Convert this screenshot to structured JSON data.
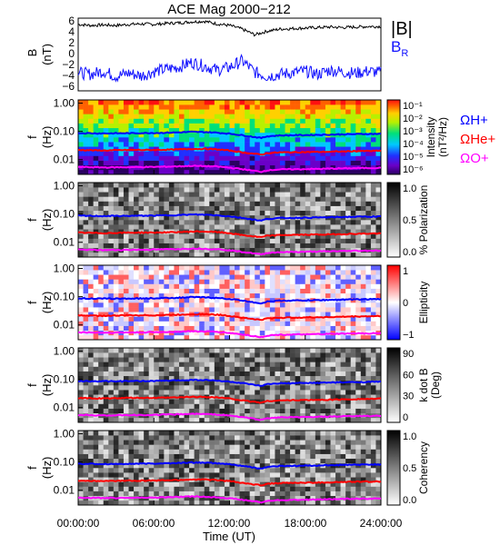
{
  "title": "ACE Mag 2000−212",
  "xlabel": "Time (UT)",
  "x_ticks": [
    "00:00:00",
    "06:00:00",
    "12:00:00",
    "18:00:00",
    "24:00:00"
  ],
  "colors": {
    "B_total": "#000000",
    "B_R": "#1010ff",
    "H": "#0000ff",
    "He": "#ff0000",
    "O": "#ff00ff"
  },
  "chart_data": [
    {
      "type": "line",
      "panel": "field",
      "ylabel": "B",
      "yunit": "(nT)",
      "ylim": [
        -7,
        7
      ],
      "y_ticks": [
        "6",
        "4",
        "2",
        "0",
        "−2",
        "−4",
        "−6"
      ],
      "x_range_hours": [
        0,
        24
      ],
      "legend": [
        "|B|",
        "B"
      ],
      "legend_sub": "R",
      "series": [
        {
          "name": "|B|",
          "x": [
            0,
            1,
            2,
            3,
            4,
            5,
            6,
            7,
            8,
            9,
            10,
            11,
            12,
            13,
            14,
            15,
            16,
            17,
            18,
            19,
            20,
            21,
            22,
            23,
            24
          ],
          "y": [
            5.8,
            5.6,
            5.7,
            5.6,
            5.8,
            5.9,
            5.8,
            6.0,
            6.1,
            6.3,
            6.4,
            5.9,
            5.6,
            4.9,
            3.8,
            4.5,
            4.9,
            5.0,
            5.1,
            5.2,
            5.3,
            5.2,
            5.3,
            5.4,
            5.4
          ]
        },
        {
          "name": "B_R",
          "x": [
            0,
            1,
            2,
            3,
            4,
            5,
            6,
            7,
            8,
            9,
            10,
            11,
            12,
            13,
            14,
            15,
            16,
            17,
            18,
            19,
            20,
            21,
            22,
            23,
            24
          ],
          "y": [
            -3.5,
            -3.8,
            -3.2,
            -4.2,
            -3.6,
            -4.1,
            -3.3,
            -2.8,
            -2.4,
            -1.5,
            -2.2,
            -3.0,
            -2.5,
            -1.2,
            -3.4,
            -4.2,
            -3.8,
            -3.5,
            -3.2,
            -3.8,
            -3.0,
            -3.4,
            -3.6,
            -3.2,
            -3.5
          ]
        }
      ]
    },
    {
      "type": "heatmap",
      "panel": "intensity",
      "ylabel": "f",
      "yunit": "(Hz)",
      "y_ticks": [
        "1.00",
        "0.10",
        "0.01"
      ],
      "colorbar_label": "Intensity",
      "colorbar_unit": "(nT²/Hz)",
      "colorbar_ticks": [
        "10⁻¹",
        "10⁻²",
        "10⁻³",
        "10⁻⁴",
        "10⁻⁵",
        "10⁻⁶"
      ],
      "gyro_labels": [
        "ΩH+",
        "ΩHe+",
        "ΩO+"
      ]
    },
    {
      "type": "heatmap",
      "panel": "polarization",
      "ylabel": "f",
      "yunit": "(Hz)",
      "y_ticks": [
        "1.00",
        "0.10",
        "0.01"
      ],
      "colorbar_label": "% Polarization",
      "colorbar_ticks": [
        "1.0",
        "0.5",
        "0.0"
      ]
    },
    {
      "type": "heatmap",
      "panel": "ellipticity",
      "ylabel": "f",
      "yunit": "(Hz)",
      "y_ticks": [
        "1.00",
        "0.10",
        "0.01"
      ],
      "colorbar_label": "Ellipticity",
      "colorbar_ticks": [
        "1",
        "0",
        "−1"
      ]
    },
    {
      "type": "heatmap",
      "panel": "kdotb",
      "ylabel": "f",
      "yunit": "(Hz)",
      "y_ticks": [
        "1.00",
        "0.10",
        "0.01"
      ],
      "colorbar_label": "k dot B",
      "colorbar_unit": "(Deg)",
      "colorbar_ticks": [
        "90",
        "60",
        "30",
        "0"
      ]
    },
    {
      "type": "heatmap",
      "panel": "coherency",
      "ylabel": "f",
      "yunit": "(Hz)",
      "y_ticks": [
        "1.00",
        "0.10",
        "0.01"
      ],
      "colorbar_label": "Coherency",
      "colorbar_ticks": [
        "1.0",
        "0.5",
        "0.0"
      ]
    }
  ],
  "gyrofrequency_lines_hz": {
    "x_hours": [
      0,
      2,
      4,
      6,
      8,
      9,
      10,
      11,
      12,
      13,
      14,
      14.5,
      15,
      16,
      18,
      20,
      22,
      24
    ],
    "H": [
      0.087,
      0.085,
      0.086,
      0.088,
      0.092,
      0.096,
      0.095,
      0.09,
      0.083,
      0.073,
      0.063,
      0.058,
      0.067,
      0.072,
      0.074,
      0.077,
      0.08,
      0.082
    ],
    "He": [
      0.022,
      0.021,
      0.022,
      0.022,
      0.023,
      0.024,
      0.024,
      0.023,
      0.021,
      0.018,
      0.016,
      0.015,
      0.017,
      0.018,
      0.0185,
      0.019,
      0.02,
      0.0205
    ],
    "O": [
      0.0055,
      0.0053,
      0.0054,
      0.0055,
      0.0058,
      0.006,
      0.0059,
      0.0057,
      0.0052,
      0.0046,
      0.004,
      0.0037,
      0.0042,
      0.0045,
      0.0046,
      0.0048,
      0.005,
      0.0051
    ]
  }
}
